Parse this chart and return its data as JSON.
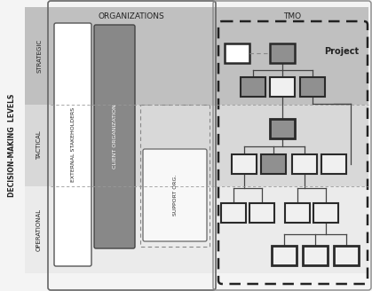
{
  "fig_bg": "#f4f4f4",
  "title_orgs": "ORGANIZATIONS",
  "title_tmo": "TMO",
  "label_strategic": "STRATEGIC",
  "label_tactical": "TACTICAL",
  "label_operational": "OPERATIONAL",
  "label_dm": "DECISION-MAKING  LEVELS",
  "label_ext": "EXTERNAL STAKEHOLDERS",
  "label_client": "CLIENT ORGANIZATION",
  "label_support": "SUPPORT ORG.",
  "label_project": "Project",
  "band_strategic_color": "#c0c0c0",
  "band_tactical_color": "#d8d8d8",
  "band_operational_color": "#ebebeb",
  "dark_gray_box": "#909090",
  "light_box": "#f0f0f0",
  "white_box": "#ffffff",
  "border_dark": "#2a2a2a",
  "border_med": "#555555",
  "dashed_color": "#888888"
}
